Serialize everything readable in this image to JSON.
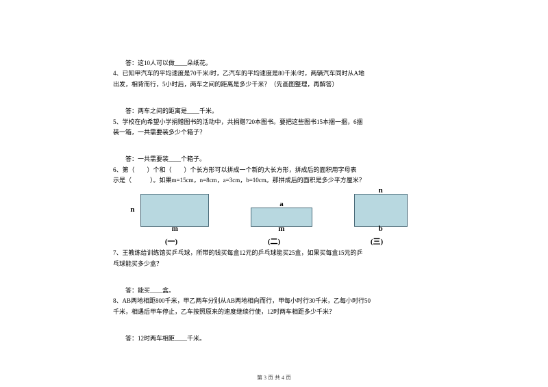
{
  "questions": {
    "q3_answer": "答：这10人可以做____朵纸花。",
    "q4_line1": "4、已知甲汽车的平均速度是70千米/时，乙汽车的平均速度是80千米/时，两辆汽车同时从A地",
    "q4_line2": "出发，相背而行，5小时后，两车之间的距离是多少千米？（先画图整理，再解答）",
    "q4_answer": "答：两车之间的距离是____千米。",
    "q5_line1": "5、学校在向希望小学捐赠图书的活动中，共捐赠720本图书。要把这些图书15本捆一捆，6捆",
    "q5_line2": "装一箱，一共需要装多少个箱子？",
    "q5_answer": "答：一共需要装____个箱子。",
    "q6_line1": "6、第（　　）个和（　　）个长方形可以拼成一个新的大长方形，拼成后的面积用字母表",
    "q6_line2": "示是（　　　）。如果m=15cm，n=8cm，a=3cm，b=10cm。那拼成后的面积是多少平方厘米？",
    "q7_line1": "7、王教练给训练馆买乒乓球，所带的钱买每盒12元的乒乓球能买25盒，如果买每盒15元的乒",
    "q7_line2": "乓球能买多少盒？",
    "q7_answer": "答：能买____盒。",
    "q8_line1": "8、AB两地相距800千米，甲乙两车分别从AB两地相向而行，甲每小时行30千米，乙每小时行50",
    "q8_line2": "千米，相遇后甲车停止，乙车按照原来的速度继续行使，12时两车相距多少千米？",
    "q8_answer": "答：12时两车相距____千米。"
  },
  "diagram": {
    "rect1": {
      "left": "n",
      "bottom": "m"
    },
    "rect2": {
      "top": "a",
      "bottom": "m"
    },
    "rect3": {
      "top": "n",
      "bottom": "b"
    },
    "labels": {
      "one": "(一)",
      "two": "(二)",
      "three": "(三)"
    }
  },
  "footer": "第 3 页 共 4 页"
}
